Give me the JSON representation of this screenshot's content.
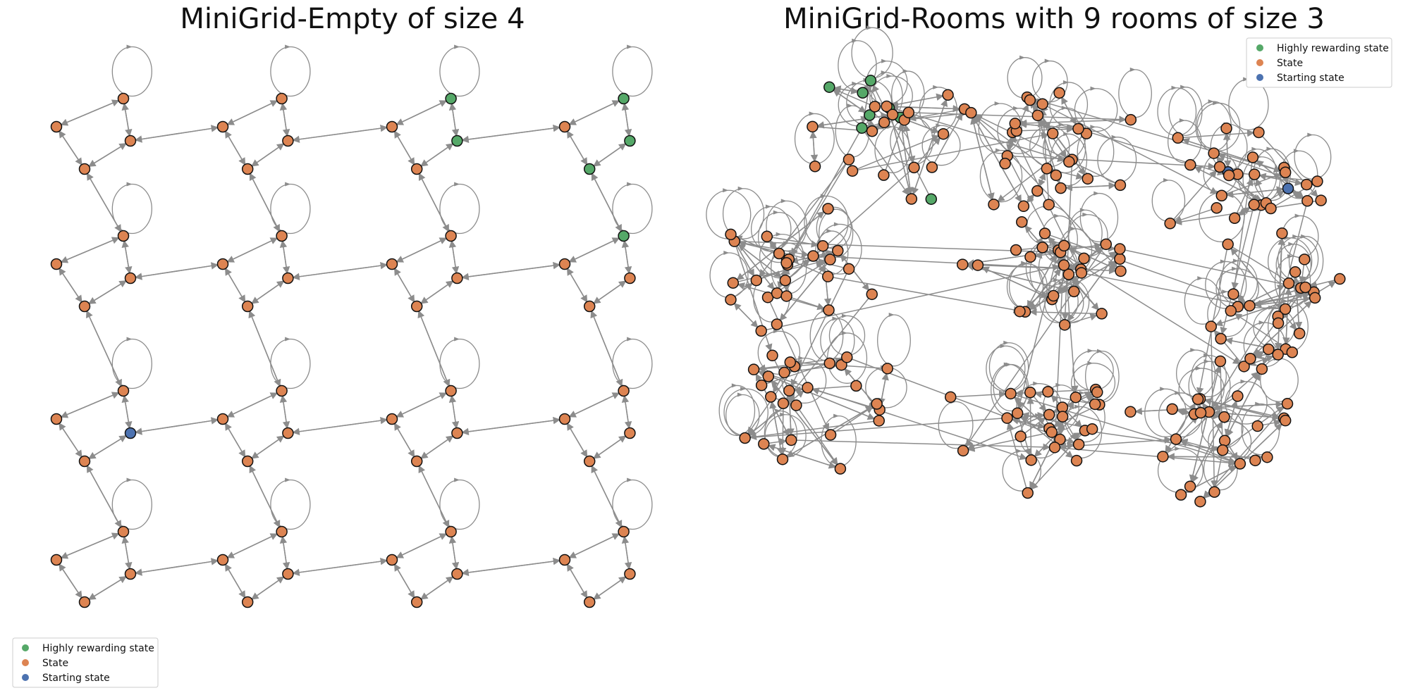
{
  "panels": [
    {
      "title": "MiniGrid-Empty of size 4",
      "legend": {
        "position": "lower-left",
        "items": [
          {
            "label": "Highly rewarding state",
            "color": "#55a868"
          },
          {
            "label": "State",
            "color": "#dd8452"
          },
          {
            "label": "Starting state",
            "color": "#4c72b0"
          }
        ]
      },
      "grid": {
        "rows": 4,
        "cols": 4
      },
      "reward_nodes": [
        [
          0,
          3,
          "s0"
        ],
        [
          0,
          3,
          "s1"
        ],
        [
          0,
          3,
          "s2"
        ],
        [
          0,
          2,
          "s0"
        ],
        [
          0,
          2,
          "s1"
        ],
        [
          1,
          3,
          "s0"
        ]
      ],
      "start_node": [
        2,
        0,
        "s1"
      ]
    },
    {
      "title": "MiniGrid-Rooms with 9 rooms of size 3",
      "legend": {
        "position": "upper-right",
        "items": [
          {
            "label": "Highly rewarding state",
            "color": "#55a868"
          },
          {
            "label": "State",
            "color": "#dd8452"
          },
          {
            "label": "Starting state",
            "color": "#4c72b0"
          }
        ]
      },
      "rooms": 9,
      "room_size": 3
    }
  ],
  "colors": {
    "reward": "#55a868",
    "state": "#dd8452",
    "start": "#4c72b0",
    "edge": "#8c8c8c",
    "node_stroke": "#111111"
  }
}
